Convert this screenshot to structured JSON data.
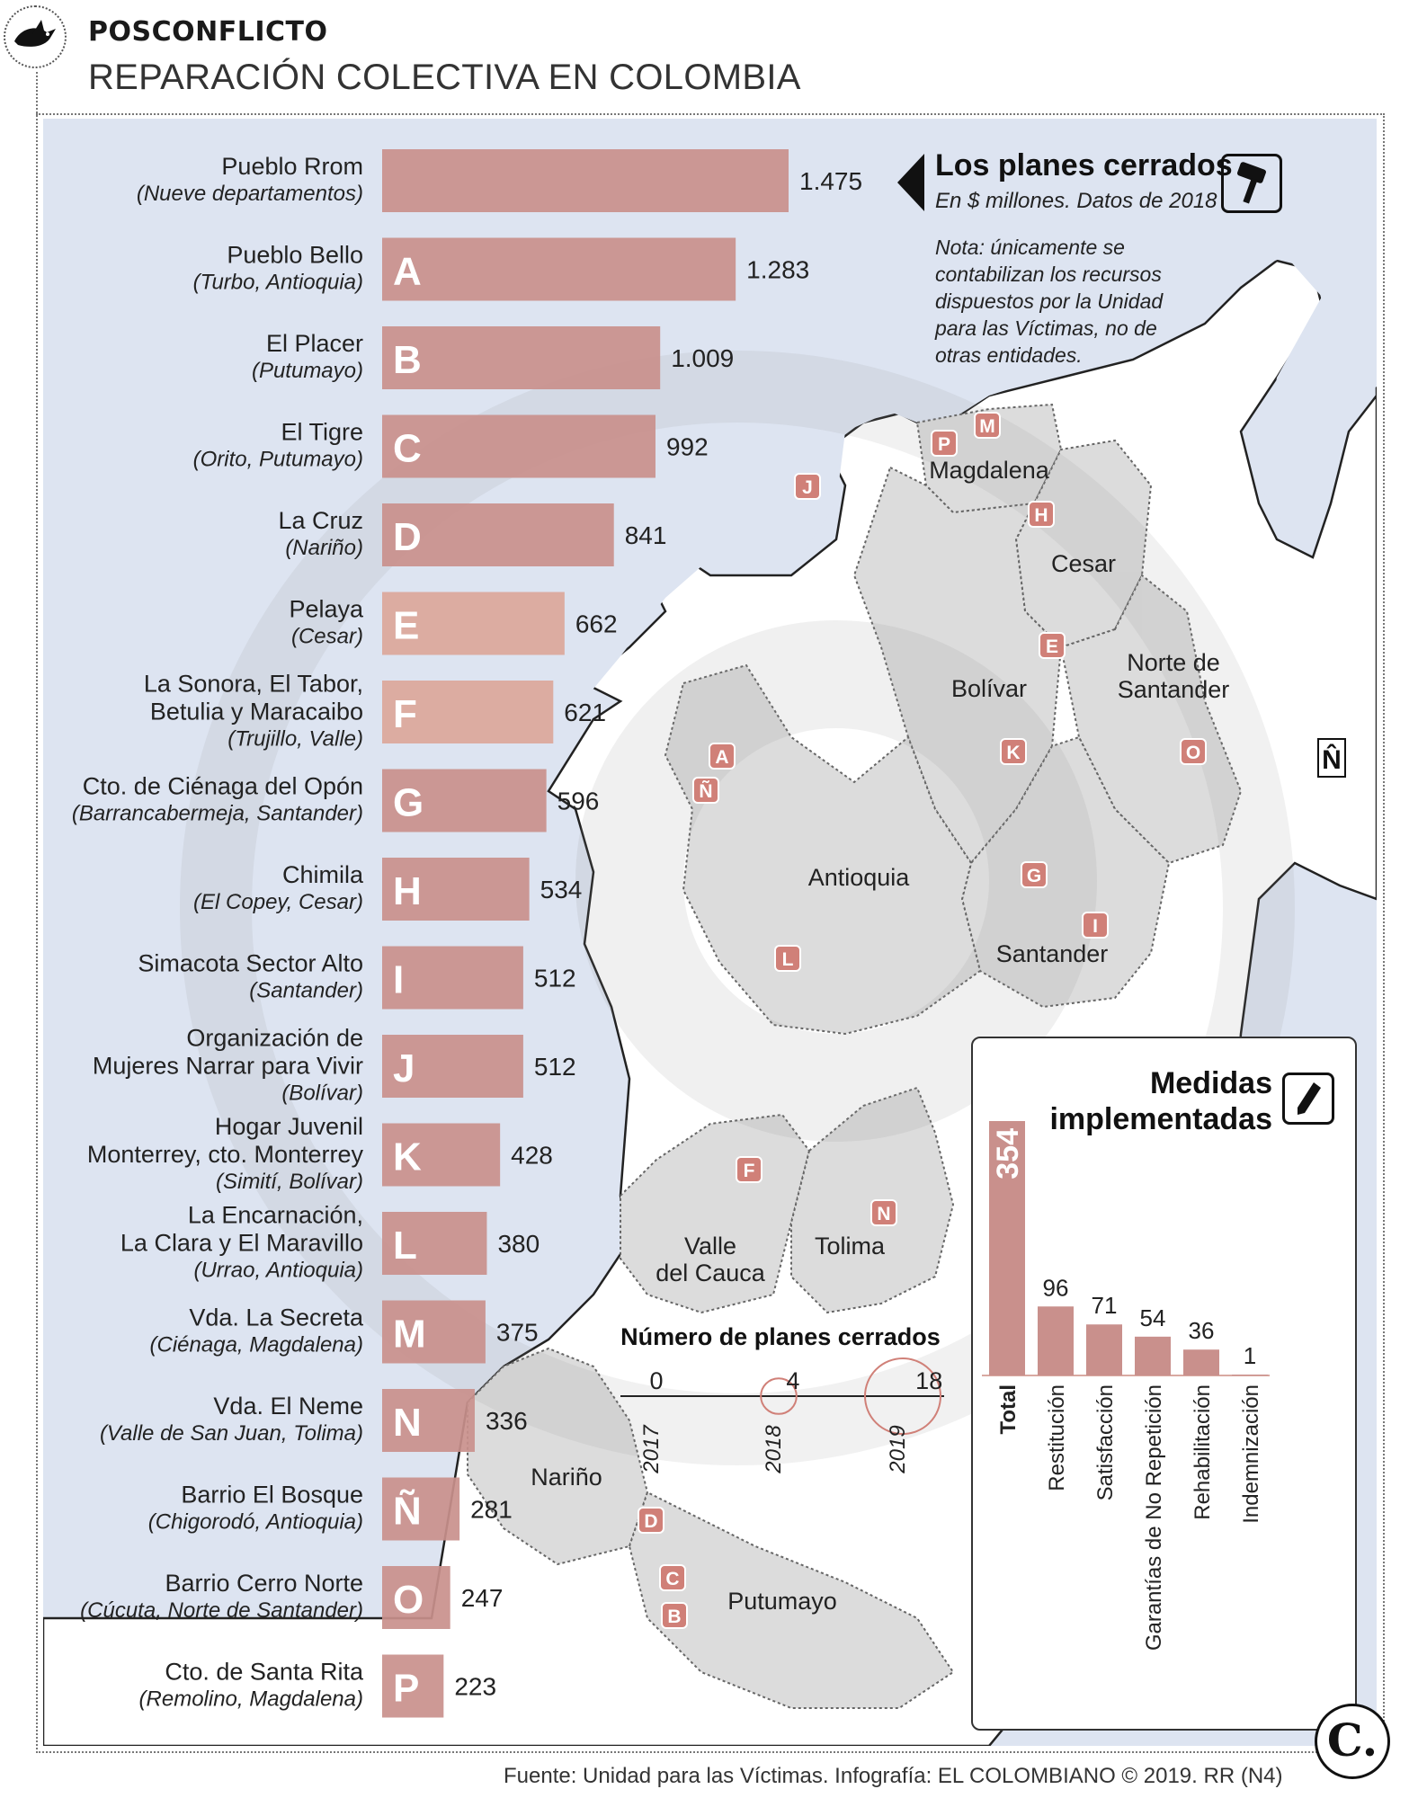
{
  "header": {
    "section": "POSCONFLICTO",
    "title": "REPARACIÓN COLECTIVA EN COLOMBIA"
  },
  "plans_box": {
    "title": "Los planes cerrados",
    "subtitle": "En $ millones. Datos de 2018",
    "note": "Nota: únicamente se contabilizan los recursos dispuestos por la Unidad para las Víctimas, no de otras entidades."
  },
  "colors": {
    "bar": "#c9908c",
    "bar_faded": "#dba79a",
    "map_land": "#dcdcdc",
    "map_sea": "#dde4f1",
    "marker": "#d08078"
  },
  "chart_data": [
    {
      "type": "bar",
      "orientation": "horizontal",
      "title": "Los planes cerrados",
      "unit": "En $ millones. Datos de 2018",
      "categories": [
        {
          "name": "Pueblo Rrom",
          "place": "(Nueve departamentos)",
          "letter": "",
          "value_label": "1.475"
        },
        {
          "name": "Pueblo Bello",
          "place": "(Turbo, Antioquia)",
          "letter": "A",
          "value_label": "1.283"
        },
        {
          "name": "El Placer",
          "place": "(Putumayo)",
          "letter": "B",
          "value_label": "1.009"
        },
        {
          "name": "El Tigre",
          "place": "(Orito, Putumayo)",
          "letter": "C",
          "value_label": "992"
        },
        {
          "name": "La Cruz",
          "place": "(Nariño)",
          "letter": "D",
          "value_label": "841"
        },
        {
          "name": "Pelaya",
          "place": "(Cesar)",
          "letter": "E",
          "value_label": "662"
        },
        {
          "name": "La Sonora, El Tabor, Betulia y Maracaibo",
          "place": "(Trujillo, Valle)",
          "letter": "F",
          "value_label": "621"
        },
        {
          "name": "Cto. de Ciénaga del Opón",
          "place": "(Barrancabermeja, Santander)",
          "letter": "G",
          "value_label": "596"
        },
        {
          "name": "Chimila",
          "place": "(El Copey, Cesar)",
          "letter": "H",
          "value_label": "534"
        },
        {
          "name": "Simacota Sector Alto",
          "place": "(Santander)",
          "letter": "I",
          "value_label": "512"
        },
        {
          "name": "Organización de Mujeres Narrar para Vivir",
          "place": "(Bolívar)",
          "letter": "J",
          "value_label": "512"
        },
        {
          "name": "Hogar Juvenil Monterrey, cto. Monterrey",
          "place": "(Simití, Bolívar)",
          "letter": "K",
          "value_label": "428"
        },
        {
          "name": "La Encarnación, La Clara y El Maravillo",
          "place": "(Urrao, Antioquia)",
          "letter": "L",
          "value_label": "380"
        },
        {
          "name": "Vda. La Secreta",
          "place": "(Ciénaga, Magdalena)",
          "letter": "M",
          "value_label": "375"
        },
        {
          "name": "Vda. El Neme",
          "place": "(Valle de San Juan, Tolima)",
          "letter": "N",
          "value_label": "336"
        },
        {
          "name": "Barrio El Bosque",
          "place": "(Chigorodó, Antioquia)",
          "letter": "Ñ",
          "value_label": "281"
        },
        {
          "name": "Barrio Cerro Norte",
          "place": "(Cúcuta, Norte de Santander)",
          "letter": "O",
          "value_label": "247"
        },
        {
          "name": "Cto. de Santa Rita",
          "place": "(Remolino, Magdalena)",
          "letter": "P",
          "value_label": "223"
        }
      ],
      "values": [
        1475,
        1283,
        1009,
        992,
        841,
        662,
        621,
        596,
        534,
        512,
        512,
        428,
        380,
        375,
        336,
        281,
        247,
        223
      ],
      "name_lines": [
        [
          "Pueblo Rrom"
        ],
        [
          "Pueblo Bello"
        ],
        [
          "El Placer"
        ],
        [
          "El Tigre"
        ],
        [
          "La Cruz"
        ],
        [
          "Pelaya"
        ],
        [
          "La Sonora, El Tabor,",
          "Betulia y Maracaibo"
        ],
        [
          "Cto. de Ciénaga del Opón"
        ],
        [
          "Chimila"
        ],
        [
          "Simacota Sector Alto"
        ],
        [
          "Organización de",
          "Mujeres Narrar para Vivir"
        ],
        [
          "Hogar Juvenil",
          "Monterrey, cto. Monterrey"
        ],
        [
          "La Encarnación,",
          "La Clara y El Maravillo"
        ],
        [
          "Vda. La Secreta"
        ],
        [
          "Vda. El Neme"
        ],
        [
          "Barrio El Bosque"
        ],
        [
          "Barrio Cerro Norte"
        ],
        [
          "Cto. de Santa Rita"
        ]
      ]
    },
    {
      "type": "bar",
      "orientation": "vertical",
      "title": "Medidas implementadas",
      "categories": [
        "Total",
        "Restitución",
        "Satisfacción",
        "Garantías de No Repetición",
        "Rehabilitación",
        "Indemnización"
      ],
      "values": [
        354,
        96,
        71,
        54,
        36,
        1
      ]
    },
    {
      "type": "scatter",
      "title": "Número de planes cerrados",
      "x": [
        "2017",
        "2018",
        "2019"
      ],
      "values": [
        0,
        4,
        18
      ]
    }
  ],
  "map": {
    "regions": [
      {
        "name": "Magdalena",
        "lines": [
          "Magdalena"
        ]
      },
      {
        "name": "Cesar",
        "lines": [
          "Cesar"
        ]
      },
      {
        "name": "Norte de Santander",
        "lines": [
          "Norte de",
          "Santander"
        ]
      },
      {
        "name": "Bolívar",
        "lines": [
          "Bolívar"
        ]
      },
      {
        "name": "Antioquia",
        "lines": [
          "Antioquia"
        ]
      },
      {
        "name": "Santander",
        "lines": [
          "Santander"
        ]
      },
      {
        "name": "Valle del Cauca",
        "lines": [
          "Valle",
          "del Cauca"
        ]
      },
      {
        "name": "Tolima",
        "lines": [
          "Tolima"
        ]
      },
      {
        "name": "Nariño",
        "lines": [
          "Nariño"
        ]
      },
      {
        "name": "Putumayo",
        "lines": [
          "Putumayo"
        ]
      }
    ],
    "markers": [
      "M",
      "P",
      "J",
      "H",
      "E",
      "O",
      "K",
      "A",
      "Ñ",
      "G",
      "I",
      "L",
      "F",
      "N",
      "D",
      "C",
      "B"
    ],
    "compass": "N̂"
  },
  "footer": {
    "source": "Fuente: Unidad para las Víctimas. Infografía: EL COLOMBIANO © 2019. RR (N4)",
    "badge": "C."
  }
}
